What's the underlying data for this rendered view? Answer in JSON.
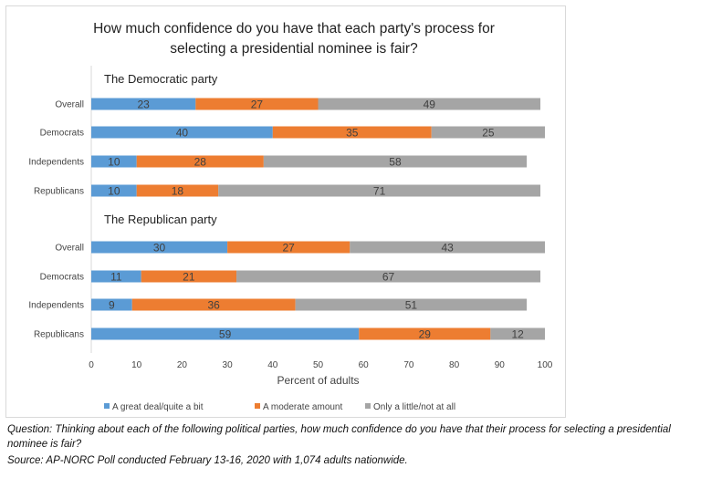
{
  "chart_data": {
    "type": "bar",
    "stacked": true,
    "orientation": "horizontal",
    "title": "How much confidence do you have that each party's process for\nselecting a presidential nominee is fair?",
    "xlabel": "Percent of adults",
    "xlim": [
      0,
      100
    ],
    "x_ticks": [
      "0",
      "10",
      "20",
      "30",
      "40",
      "50",
      "60",
      "70",
      "80",
      "90",
      "100"
    ],
    "grid": false,
    "legend_position": "bottom",
    "series": [
      {
        "name": "A great deal/quite a bit",
        "color": "#5b9bd5"
      },
      {
        "name": "A moderate amount",
        "color": "#ed7d31"
      },
      {
        "name": "Only a little/not at all",
        "color": "#a5a5a5"
      }
    ],
    "groups": [
      {
        "label": "The Democratic party",
        "rows": [
          {
            "category": "Overall",
            "values": [
              23,
              27,
              49
            ]
          },
          {
            "category": "Democrats",
            "values": [
              40,
              35,
              25
            ]
          },
          {
            "category": "Independents",
            "values": [
              10,
              28,
              58
            ]
          },
          {
            "category": "Republicans",
            "values": [
              10,
              18,
              71
            ]
          }
        ]
      },
      {
        "label": "The Republican party",
        "rows": [
          {
            "category": "Overall",
            "values": [
              30,
              27,
              43
            ]
          },
          {
            "category": "Democrats",
            "values": [
              11,
              21,
              67
            ]
          },
          {
            "category": "Independents",
            "values": [
              9,
              36,
              51
            ]
          },
          {
            "category": "Republicans",
            "values": [
              59,
              29,
              12
            ]
          }
        ]
      }
    ]
  },
  "notes": {
    "question": "Question: Thinking about each of the following political parties, how much confidence do you have that their process for selecting a presidential nominee is fair?",
    "source": "Source: AP-NORC Poll conducted February 13-16, 2020 with 1,074 adults nationwide."
  }
}
